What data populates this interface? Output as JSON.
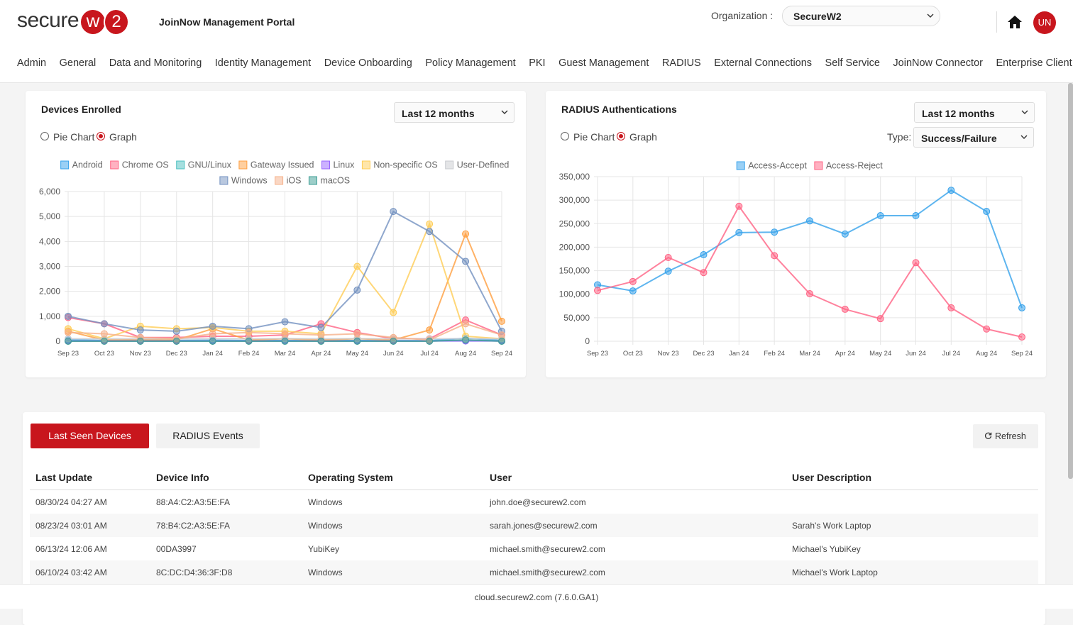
{
  "header": {
    "logo_text": "secure",
    "logo_badge": [
      "w",
      "2"
    ],
    "portal_title": "JoinNow Management Portal",
    "org_label": "Organization :",
    "org_value": "SecureW2",
    "avatar": "UN"
  },
  "nav": [
    "Admin",
    "General",
    "Data and Monitoring",
    "Identity Management",
    "Device Onboarding",
    "Policy Management",
    "PKI",
    "Guest Management",
    "RADIUS",
    "External Connections",
    "Self Service",
    "JoinNow Connector",
    "Enterprise Client"
  ],
  "panels": [
    {
      "range": "Last 12 months",
      "view_options": [
        "Pie Chart",
        "Graph"
      ]
    },
    {
      "range": "Last 12 months",
      "view_options": [
        "Pie Chart",
        "Graph"
      ],
      "type_label": "Type:",
      "type_value": "Success/Failure"
    }
  ],
  "chart_data": [
    {
      "type": "line",
      "title": "Devices Enrolled",
      "grid": true,
      "legend": "top",
      "categories": [
        "Sep 23",
        "Oct 23",
        "Nov 23",
        "Dec 23",
        "Jan 24",
        "Feb 24",
        "Mar 24",
        "Apr 24",
        "May 24",
        "Jun 24",
        "Jul 24",
        "Aug 24",
        "Sep 24"
      ],
      "ylim": [
        0,
        6000
      ],
      "yticks": [
        0,
        {
          "value": 1000,
          "label": "1,000"
        },
        {
          "value": 2000,
          "label": "2,000"
        },
        {
          "value": 3000,
          "label": "3,000"
        },
        {
          "value": 4000,
          "label": "4,000"
        },
        {
          "value": 5000,
          "label": "5,000"
        },
        {
          "value": 6000,
          "label": "6,000"
        }
      ],
      "series": [
        {
          "name": "Android",
          "color": "#36a2eb",
          "values": [
            50,
            30,
            40,
            30,
            40,
            30,
            30,
            30,
            30,
            20,
            20,
            120,
            30
          ]
        },
        {
          "name": "Chrome OS",
          "color": "#ff6384",
          "values": [
            950,
            700,
            150,
            150,
            200,
            200,
            250,
            700,
            350,
            100,
            100,
            850,
            250
          ]
        },
        {
          "name": "GNU/Linux",
          "color": "#4bc0c0",
          "values": [
            20,
            20,
            20,
            20,
            20,
            20,
            20,
            20,
            20,
            20,
            20,
            20,
            20
          ]
        },
        {
          "name": "Gateway Issued",
          "color": "#ff9f40",
          "values": [
            400,
            50,
            50,
            50,
            500,
            50,
            100,
            50,
            100,
            50,
            450,
            4300,
            800
          ]
        },
        {
          "name": "Linux",
          "color": "#9966ff",
          "values": [
            10,
            10,
            10,
            10,
            10,
            10,
            10,
            10,
            10,
            10,
            10,
            10,
            10
          ]
        },
        {
          "name": "Non-specific OS",
          "color": "#ffcd56",
          "values": [
            500,
            100,
            600,
            500,
            550,
            400,
            400,
            300,
            3000,
            1150,
            4700,
            200,
            100
          ]
        },
        {
          "name": "User-Defined",
          "color": "#c9cbcf",
          "values": [
            100,
            100,
            100,
            100,
            100,
            100,
            100,
            100,
            100,
            100,
            100,
            100,
            100
          ]
        },
        {
          "name": "Windows",
          "color": "#7391c0",
          "values": [
            1000,
            700,
            450,
            400,
            600,
            500,
            780,
            550,
            2050,
            5200,
            4400,
            3200,
            400
          ]
        },
        {
          "name": "iOS",
          "color": "#f6b08a",
          "values": [
            350,
            300,
            150,
            100,
            300,
            350,
            300,
            250,
            300,
            150,
            50,
            700,
            250
          ]
        },
        {
          "name": "macOS",
          "color": "#3c9d94",
          "values": [
            0,
            0,
            0,
            0,
            0,
            0,
            0,
            0,
            0,
            0,
            0,
            50,
            0
          ]
        }
      ]
    },
    {
      "type": "line",
      "title": "RADIUS Authentications",
      "grid": true,
      "legend": "top",
      "categories": [
        "Sep 23",
        "Oct 23",
        "Nov 23",
        "Dec 23",
        "Jan 24",
        "Feb 24",
        "Mar 24",
        "Apr 24",
        "May 24",
        "Jun 24",
        "Jul 24",
        "Aug 24",
        "Sep 24"
      ],
      "ylim": [
        0,
        350000
      ],
      "yticks": [
        0,
        {
          "value": 50000,
          "label": "50,000"
        },
        {
          "value": 100000,
          "label": "100,000"
        },
        {
          "value": 150000,
          "label": "150,000"
        },
        {
          "value": 200000,
          "label": "200,000"
        },
        {
          "value": 250000,
          "label": "250,000"
        },
        {
          "value": 300000,
          "label": "300,000"
        },
        {
          "value": 350000,
          "label": "350,000"
        }
      ],
      "series": [
        {
          "name": "Access-Accept",
          "color": "#36a2eb",
          "values": [
            120000,
            107000,
            149000,
            184000,
            231000,
            232000,
            256000,
            228000,
            267000,
            267000,
            321000,
            276000,
            71000
          ]
        },
        {
          "name": "Access-Reject",
          "color": "#ff6384",
          "values": [
            108000,
            127000,
            178000,
            146000,
            287000,
            182000,
            101000,
            68000,
            48000,
            167000,
            71000,
            26000,
            9000
          ]
        }
      ]
    }
  ],
  "devices_table": {
    "tabs": [
      "Last Seen Devices",
      "RADIUS Events"
    ],
    "refresh": "Refresh",
    "columns": [
      "Last Update",
      "Device Info",
      "Operating System",
      "User",
      "User Description"
    ],
    "rows": [
      [
        "08/30/24 04:27 AM",
        "88:A4:C2:A3:5E:FA",
        "Windows",
        "john.doe@securew2.com",
        null
      ],
      [
        "08/23/24 03:01 AM",
        "78:B4:C2:A3:5E:FA",
        "Windows",
        "sarah.jones@securew2.com",
        "Sarah's Work Laptop"
      ],
      [
        "06/13/24 12:06 AM",
        "00DA3997",
        "YubiKey",
        "michael.smith@securew2.com",
        "Michael's YubiKey"
      ],
      [
        "06/10/24 03:42 AM",
        "8C:DC:D4:36:3F:D8",
        "Windows",
        "michael.smith@securew2.com",
        "Michael's Work Laptop"
      ]
    ]
  },
  "footer": "cloud.securew2.com (7.6.0.GA1)"
}
